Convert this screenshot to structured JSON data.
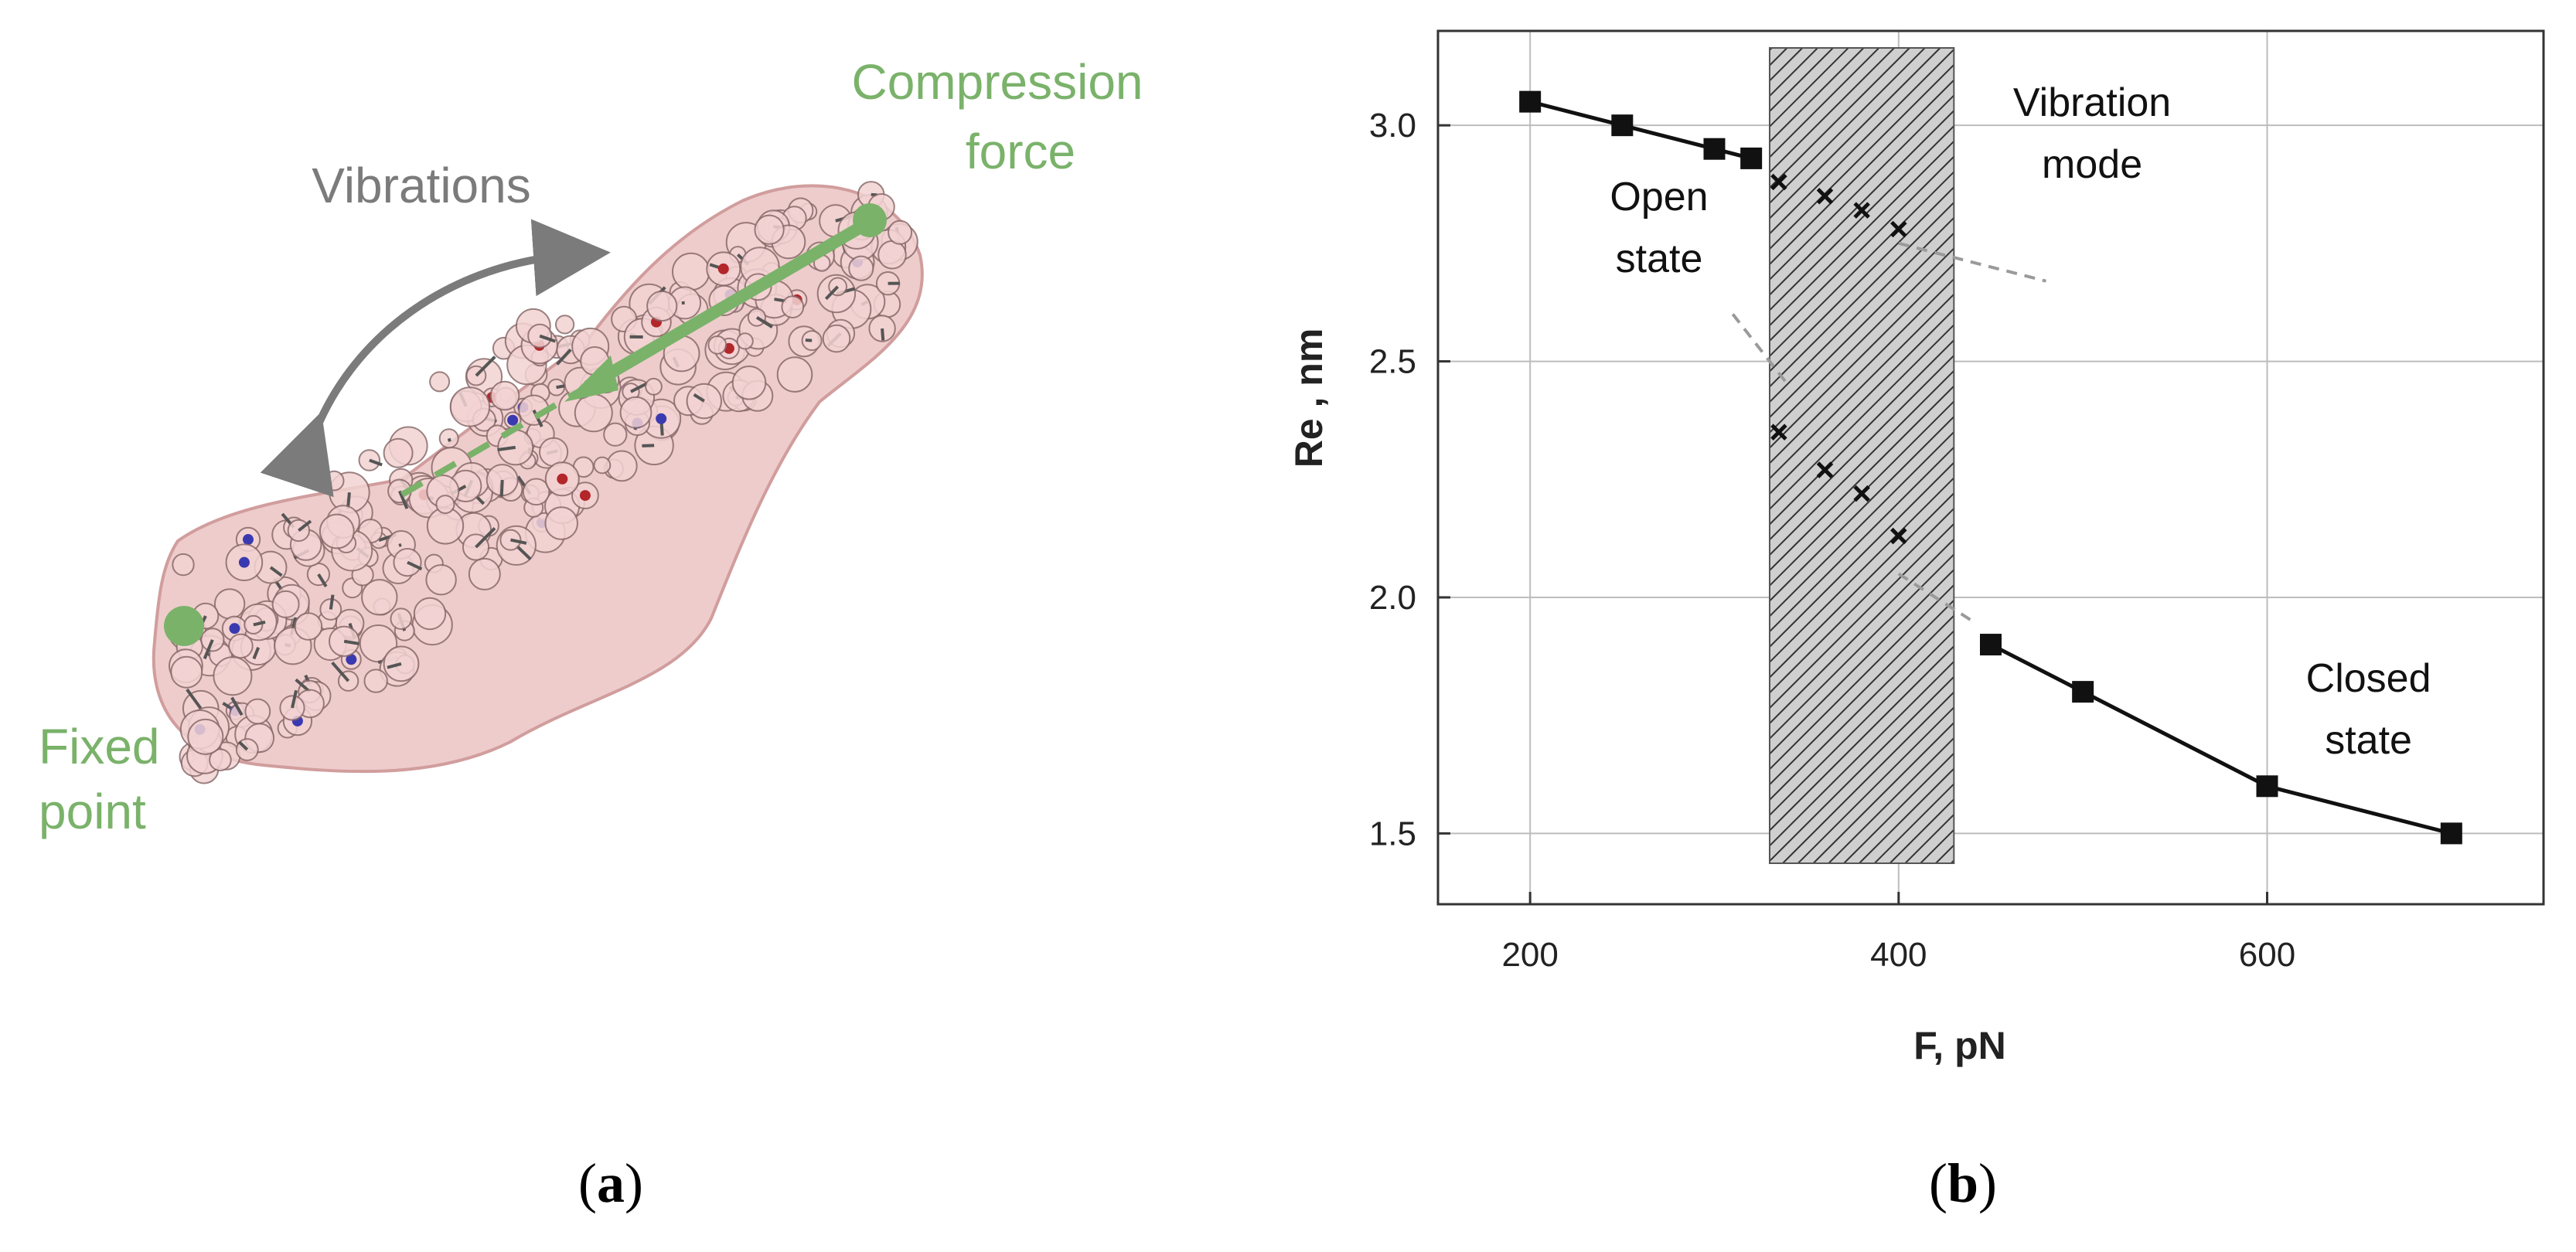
{
  "panel_a": {
    "caption_open": "(",
    "caption_letter": "a",
    "caption_close": ")",
    "label_compression": [
      "Compression",
      "force"
    ],
    "label_vibrations": "Vibrations",
    "label_fixed": [
      "Fixed",
      "point"
    ],
    "colors": {
      "green": "#7ab26a",
      "gray": "#7b7b7b",
      "pink": "#e9b7b7"
    }
  },
  "panel_b": {
    "caption_open": "(",
    "caption_letter": "b",
    "caption_close": ")"
  },
  "chart_data": {
    "type": "scatter",
    "xlabel": "F, pN",
    "ylabel": "Re , nm",
    "xlim": [
      150,
      750
    ],
    "ylim": [
      1.35,
      3.2
    ],
    "x_ticks": [
      200,
      400,
      600
    ],
    "x_tick_labels": [
      "200",
      "400",
      "600"
    ],
    "y_ticks": [
      1.5,
      2.0,
      2.5,
      3.0
    ],
    "y_tick_labels": [
      "1.5",
      "2.0",
      "2.5",
      "3.0"
    ],
    "grid": true,
    "shaded_region": {
      "x": [
        330,
        430
      ],
      "label": "Vibration mode"
    },
    "series": [
      {
        "marker": "square",
        "line": true,
        "x": [
          200,
          250,
          300,
          320
        ],
        "y": [
          3.05,
          3.0,
          2.95,
          2.93
        ]
      },
      {
        "marker": "x",
        "x": [
          335,
          360,
          380,
          400
        ],
        "y": [
          2.88,
          2.85,
          2.82,
          2.78
        ]
      },
      {
        "marker": "x",
        "x": [
          335,
          360,
          380,
          400
        ],
        "y": [
          2.35,
          2.27,
          2.22,
          2.13
        ]
      },
      {
        "marker": "square",
        "line": true,
        "x": [
          450,
          500,
          600,
          700
        ],
        "y": [
          1.9,
          1.8,
          1.6,
          1.5
        ]
      }
    ],
    "dashed_guides": [
      {
        "x": [
          400,
          480
        ],
        "y": [
          2.75,
          2.67
        ]
      },
      {
        "x": [
          310,
          340
        ],
        "y": [
          2.6,
          2.45
        ]
      },
      {
        "x": [
          400,
          440
        ],
        "y": [
          2.05,
          1.95
        ]
      }
    ],
    "annotations": [
      {
        "lines": [
          "Open",
          "state"
        ],
        "x": 270,
        "y": 2.82
      },
      {
        "lines": [
          "Vibration",
          "mode"
        ],
        "x": 505,
        "y": 3.02
      },
      {
        "lines": [
          "Closed",
          "state"
        ],
        "x": 655,
        "y": 1.8
      }
    ]
  }
}
